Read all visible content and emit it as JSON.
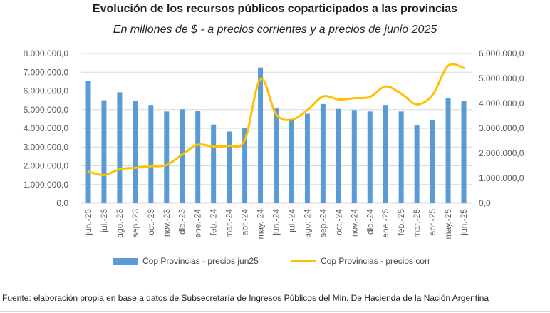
{
  "title": "Evolución de los recursos públicos coparticipados a las provincias",
  "subtitle": "En millones de $ - a precios corrientes y a precios de junio 2025",
  "source": "Fuente: elaboración propia en base a datos de Subsecretaría de Ingresos Públicos del Min. De Hacienda de la Nación Argentina",
  "colors": {
    "bar": "#5b9bd5",
    "line": "#ffc000",
    "grid": "#d9d9d9",
    "text": "#595959"
  },
  "chart_data": {
    "type": "bar",
    "categories": [
      "jun.-23",
      "jul.-23",
      "ago.-23",
      "sep.-23",
      "oct.-23",
      "nov.-23",
      "dic.-23",
      "ene.-24",
      "feb.-24",
      "mar.-24",
      "abr.-24",
      "may.-24",
      "jun.-24",
      "jul.-24",
      "ago.-24",
      "sep.-24",
      "oct.-24",
      "nov.-24",
      "dic.-24",
      "ene.-25",
      "feb.-25",
      "mar.-25",
      "abr.-25",
      "may.-25",
      "jun.-25"
    ],
    "series": [
      {
        "name": "Cop Provincias - precios jun25",
        "type": "bar",
        "axis": "left",
        "values": [
          6550000,
          5500000,
          5930000,
          5450000,
          5250000,
          4900000,
          5020000,
          4930000,
          4200000,
          3830000,
          4030000,
          7250000,
          5060000,
          4430000,
          4780000,
          5300000,
          5040000,
          4980000,
          4900000,
          5250000,
          4900000,
          4150000,
          4450000,
          5600000,
          5450000
        ]
      },
      {
        "name": "Cop Provincias - precios corr",
        "type": "line",
        "axis": "right",
        "values": [
          1270000,
          1130000,
          1360000,
          1420000,
          1480000,
          1530000,
          1950000,
          2340000,
          2270000,
          2300000,
          2530000,
          4980000,
          3570000,
          3350000,
          3730000,
          4280000,
          4160000,
          4210000,
          4260000,
          4680000,
          4390000,
          3960000,
          4340000,
          5510000,
          5420000
        ]
      }
    ],
    "yticks_left": [
      "8.000.000,0",
      "7.000.000,0",
      "6.000.000,0",
      "5.000.000,0",
      "4.000.000,0",
      "3.000.000,0",
      "2.000.000,0",
      "1.000.000,0",
      "0,0"
    ],
    "yticks_right": [
      "6.000.000,0",
      "5.000.000,0",
      "4.000.000,0",
      "3.000.000,0",
      "2.000.000,0",
      "1.000.000,0",
      "0,0"
    ],
    "ylim_left": [
      0,
      8000000
    ],
    "ylim_right": [
      0,
      6000000
    ],
    "grid": true,
    "legend": "bottom"
  }
}
